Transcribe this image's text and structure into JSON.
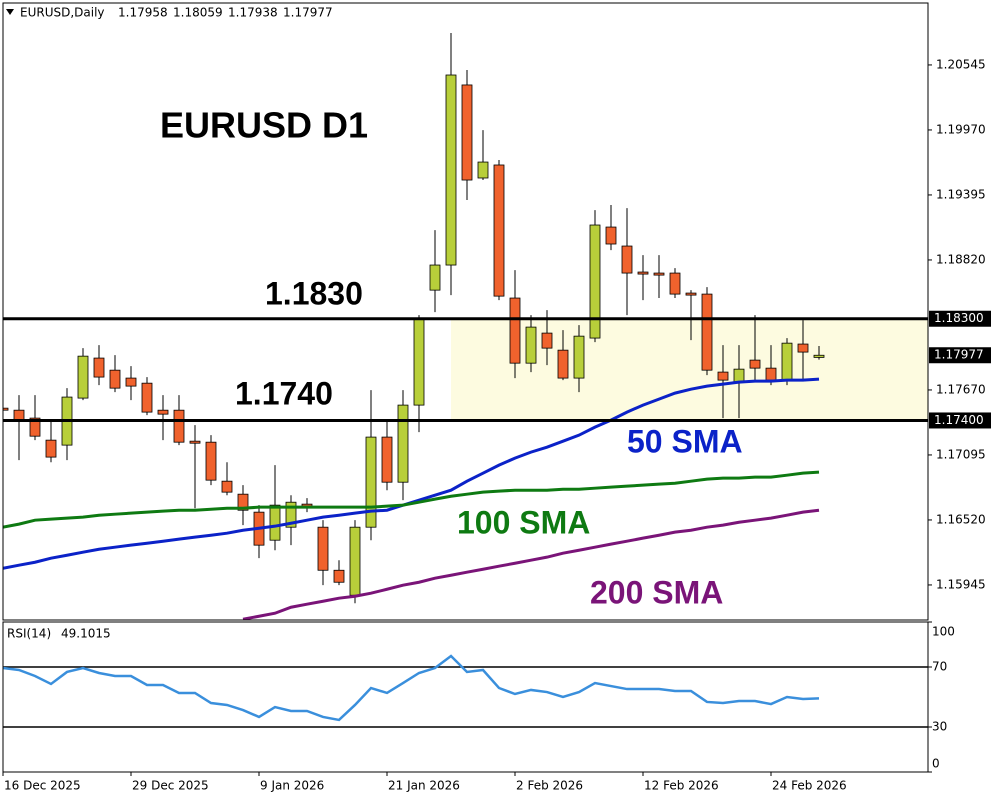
{
  "chart_data": {
    "type": "candlestick",
    "title": "EURUSD D1",
    "symbol": "EURUSD,Daily",
    "categories": [
      "16 Dec 2025",
      null,
      null,
      null,
      null,
      null,
      null,
      null,
      "29 Dec 2025",
      null,
      null,
      null,
      null,
      null,
      null,
      null,
      "9 Jan 2026",
      null,
      null,
      null,
      null,
      null,
      null,
      null,
      "21 Jan 2026",
      null,
      null,
      null,
      null,
      null,
      null,
      null,
      "2 Feb 2026",
      null,
      null,
      null,
      null,
      null,
      null,
      null,
      "12 Feb 2026",
      null,
      null,
      null,
      null,
      null,
      null,
      null,
      "24 Feb 2026",
      null,
      null,
      null
    ],
    "open": [
      1.17509,
      1.17491,
      1.17421,
      1.17226,
      1.17182,
      1.17598,
      1.17952,
      1.17845,
      1.17775,
      1.1773,
      1.17491,
      1.17491,
      1.17217,
      1.17208,
      1.16863,
      1.16748,
      1.16589,
      1.16341,
      1.16456,
      1.1666,
      1.16456,
      1.16075,
      1.15854,
      1.16456,
      1.17253,
      1.16854,
      1.17536,
      1.18553,
      1.18775,
      1.20368,
      1.19545,
      1.1966,
      1.18483,
      1.17907,
      1.18173,
      1.18022,
      1.17775,
      1.18129,
      1.19111,
      1.18943,
      1.18713,
      1.18704,
      1.18704,
      1.18527,
      1.18518,
      1.17828,
      1.17739,
      1.17934,
      1.17863,
      1.17757,
      1.18076,
      1.17958
    ],
    "high": [
      1.1758,
      1.17624,
      1.17624,
      1.17403,
      1.17686,
      1.1804,
      1.18067,
      1.17978,
      1.17881,
      1.17784,
      1.17624,
      1.17624,
      1.17359,
      1.1727,
      1.17031,
      1.16828,
      1.16651,
      1.17005,
      1.16739,
      1.16713,
      1.16518,
      1.16164,
      1.16518,
      1.17668,
      1.17403,
      1.17668,
      1.18332,
      1.19084,
      1.20828,
      1.205,
      1.19969,
      1.19704,
      1.1873,
      1.18332,
      1.18376,
      1.18199,
      1.18244,
      1.19261,
      1.19306,
      1.19279,
      1.18863,
      1.18863,
      1.18748,
      1.18553,
      1.1858,
      1.18067,
      1.18067,
      1.18332,
      1.18067,
      1.18129,
      1.18288,
      1.18059
    ],
    "low": [
      1.17447,
      1.17049,
      1.17226,
      1.17031,
      1.17049,
      1.1758,
      1.17713,
      1.17651,
      1.1758,
      1.17447,
      1.17226,
      1.17182,
      1.16624,
      1.16828,
      1.16739,
      1.16474,
      1.16182,
      1.16252,
      1.16297,
      1.16589,
      1.15943,
      1.15943,
      1.15783,
      1.16341,
      1.16783,
      1.16695,
      1.17297,
      1.18359,
      1.18509,
      1.1935,
      1.19527,
      1.18465,
      1.17775,
      1.17828,
      1.1789,
      1.17757,
      1.17651,
      1.18093,
      1.18907,
      1.18332,
      1.18465,
      1.18483,
      1.18483,
      1.18111,
      1.17801,
      1.17421,
      1.17421,
      1.17757,
      1.17713,
      1.17713,
      1.17757,
      1.17938
    ],
    "close": [
      1.17491,
      1.17403,
      1.17261,
      1.17076,
      1.17607,
      1.17969,
      1.17784,
      1.17686,
      1.17704,
      1.17474,
      1.17456,
      1.17208,
      1.17199,
      1.16872,
      1.16766,
      1.16606,
      1.16297,
      1.16651,
      1.16677,
      1.16642,
      1.16075,
      1.15969,
      1.16456,
      1.17253,
      1.16854,
      1.17536,
      1.18306,
      1.18775,
      1.20456,
      1.19527,
      1.19686,
      1.185,
      1.17907,
      1.18226,
      1.1804,
      1.17775,
      1.18146,
      1.19129,
      1.18961,
      1.18704,
      1.18695,
      1.18686,
      1.18518,
      1.18509,
      1.17845,
      1.17757,
      1.17854,
      1.17863,
      1.17757,
      1.18084,
      1.18005,
      1.17977
    ],
    "up_color": "#b8cf3a",
    "down_color": "#f0622d",
    "ylim": [
      1.15635,
      1.21093
    ],
    "yticks": [
      1.20545,
      {
        "value": 1.1997,
        "label": "1.19970"
      },
      1.19395,
      {
        "value": 1.1882,
        "label": "1.18820"
      },
      {
        "value": 1.1767,
        "label": "1.17670"
      },
      1.17095,
      {
        "value": 1.1652,
        "label": "1.16520"
      },
      1.15945
    ],
    "levels": [
      {
        "value": 1.183,
        "label": "1.18300",
        "annotation": "1.1830"
      },
      {
        "value": 1.174,
        "label": "1.17400",
        "annotation": "1.1740"
      }
    ],
    "zone_color": "#fdfbe0",
    "series": [
      {
        "name": "50 SMA",
        "color": "#0b22c8",
        "values": [
          1.16093,
          1.1612,
          1.16146,
          1.16182,
          1.16208,
          1.16235,
          1.16261,
          1.16279,
          1.16297,
          1.16314,
          1.16332,
          1.1635,
          1.16368,
          1.16385,
          1.16403,
          1.16429,
          1.16447,
          1.16465,
          1.16491,
          1.16518,
          1.16545,
          1.16562,
          1.1658,
          1.16598,
          1.16606,
          1.16651,
          1.16695,
          1.16739,
          1.16783,
          1.16863,
          1.16934,
          1.17005,
          1.17067,
          1.1712,
          1.17164,
          1.17217,
          1.1727,
          1.17341,
          1.17403,
          1.17474,
          1.17536,
          1.17589,
          1.17642,
          1.17677,
          1.17704,
          1.17722,
          1.17739,
          1.17748,
          1.17748,
          1.17757,
          1.17757,
          1.17766
        ]
      },
      {
        "name": "100 SMA",
        "color": "#0e7a12",
        "values": [
          1.16456,
          1.16483,
          1.16518,
          1.16527,
          1.16536,
          1.16545,
          1.16562,
          1.16571,
          1.1658,
          1.16589,
          1.16598,
          1.16606,
          1.16606,
          1.16615,
          1.16624,
          1.16624,
          1.16633,
          1.16633,
          1.16633,
          1.16633,
          1.16633,
          1.16633,
          1.16633,
          1.16633,
          1.16642,
          1.16651,
          1.16677,
          1.16704,
          1.1673,
          1.16748,
          1.16766,
          1.16775,
          1.16783,
          1.16783,
          1.16783,
          1.16792,
          1.16792,
          1.16801,
          1.1681,
          1.16819,
          1.16828,
          1.16837,
          1.16845,
          1.16863,
          1.16881,
          1.1689,
          1.1689,
          1.16899,
          1.16899,
          1.16916,
          1.16934,
          1.16943
        ]
      },
      {
        "name": "200 SMA",
        "color": "#7a1478",
        "values": [
          null,
          null,
          null,
          null,
          null,
          null,
          null,
          null,
          null,
          null,
          null,
          null,
          null,
          null,
          null,
          1.15642,
          1.15668,
          1.15695,
          1.15748,
          1.15775,
          1.15801,
          1.15828,
          1.15845,
          1.15872,
          1.15907,
          1.15943,
          1.15969,
          1.16005,
          1.16031,
          1.16058,
          1.16084,
          1.16111,
          1.16137,
          1.16164,
          1.16191,
          1.16226,
          1.16252,
          1.16279,
          1.16306,
          1.16332,
          1.16359,
          1.16385,
          1.16412,
          1.16429,
          1.16456,
          1.16474,
          1.165,
          1.16518,
          1.16536,
          1.16562,
          1.16589,
          1.16606
        ]
      }
    ],
    "indicator": {
      "name": "RSI(14)",
      "color": "#3a8fdc",
      "values": [
        69.3,
        68.0,
        64.0,
        58.7,
        66.7,
        69.3,
        66.0,
        64.0,
        64.0,
        58.0,
        58.0,
        52.7,
        52.7,
        46.0,
        44.7,
        41.3,
        36.7,
        43.3,
        40.7,
        40.7,
        36.7,
        34.7,
        44.7,
        56.0,
        52.7,
        59.3,
        66.0,
        69.3,
        77.3,
        66.7,
        68.0,
        56.0,
        52.0,
        54.7,
        53.3,
        50.0,
        53.3,
        59.3,
        57.3,
        55.3,
        55.3,
        55.3,
        54.0,
        54.0,
        46.7,
        46.0,
        47.3,
        47.3,
        45.3,
        50.0,
        48.7,
        49.1015
      ],
      "ylim": [
        0,
        100
      ],
      "yticks": [
        100,
        70,
        30,
        0
      ],
      "levels": [
        70,
        30
      ]
    }
  }
}
